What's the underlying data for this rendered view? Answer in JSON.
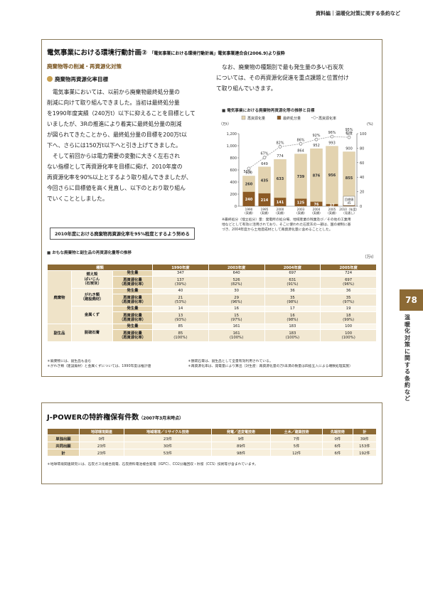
{
  "header": {
    "running_title": "資料編｜温暖化対策に関する条約など"
  },
  "side": {
    "page_number": "78",
    "vertical_label": "温暖化対策に関する条約など"
  },
  "section1": {
    "title": "電気事業における環境行動計画②",
    "title_small": "「電気事業における環境行動計画」電気事業連合会(2006.9)より抜粋",
    "heading": "廃棄物等の削減・再資源化対策",
    "subheading": "廃棄物再資源化率目標",
    "para_left": [
      "電気事業においては、以前から廃棄物最終処分量の",
      "削減に向けて取り組んできました。当初は最終処分量",
      "を1990年度実績（240万t）以下に抑えることを目標として",
      "いましたが、3Rの推進により着実に最終処分量の削減",
      "が図られてきたことから、最終処分量の目標を200万t以",
      "下へ、さらには150万t以下へと引き上げてきました。",
      "そして前回からは電力需要の変動に大きく左右され",
      "ない指標として再資源化率を目標に掲げ、2010年度の",
      "再資源化率を90%以上とするよう取り組んできましたが、",
      "今回さらに目標値を高く見直し、以下のとおり取り組ん",
      "でいくこととしました。"
    ],
    "para_right": [
      "なお、廃棄物の種類別で最も発生量の多い石炭灰",
      "については、その再資源化促進を重点課題と位置付け",
      "て取り組んでいきます。"
    ],
    "target_box": "2010年度における廃棄物再資源化率を95%程度とするよう努める",
    "chart_title": "電気事業における廃棄物再資源化等の推移と目標",
    "chart_note": [
      "※最終処分（埋立処分）量：発電所の処分場、地域産業の残業及び／その他の工業用",
      "地などとして有効に活用されており、そこに使われた石炭灰の一部は、国の規制に基",
      "づき、2004年度から土地造成材として再資源化量に含めることとした。"
    ],
    "table_title": "おもな廃棄物と副生品の再資源化量等の推移",
    "table_unit": "（万t）",
    "table_header": [
      "種類",
      "",
      "",
      "1990年度",
      "2003年度",
      "2004年度",
      "2005年度"
    ],
    "table_groups": [
      {
        "category": "廃棄物",
        "items": [
          {
            "name": "燃え殻\nばいじん\n（石炭灰）",
            "rows": [
              {
                "label": "発生量",
                "values": [
                  "347",
                  "640",
                  "697",
                  "724"
                ]
              },
              {
                "label": "再資源化量\n（再資源化率）",
                "values": [
                  "137\n(39%)",
                  "526\n(82%)",
                  "631\n(91%)",
                  "697\n(96%)"
                ]
              }
            ]
          },
          {
            "name": "がれき類\n（建設廃材）",
            "rows": [
              {
                "label": "発生量",
                "values": [
                  "40",
                  "30",
                  "36",
                  "36"
                ]
              },
              {
                "label": "再資源化量\n（再資源化率）",
                "values": [
                  "21\n(53%)",
                  "29\n(96%)",
                  "35\n(98%)",
                  "35\n(97%)"
                ]
              }
            ]
          },
          {
            "name": "金属くず",
            "rows": [
              {
                "label": "発生量",
                "values": [
                  "14",
                  "16",
                  "17",
                  "19"
                ]
              },
              {
                "label": "再資源化量\n（再資源化率）",
                "values": [
                  "13\n(93%)",
                  "15\n(97%)",
                  "16\n(98%)",
                  "18\n(99%)"
                ]
              }
            ]
          }
        ]
      },
      {
        "category": "副生品",
        "items": [
          {
            "name": "脱硫石膏",
            "rows": [
              {
                "label": "発生量",
                "values": [
                  "85",
                  "161",
                  "183",
                  "100"
                ]
              },
              {
                "label": "再資源化量\n（再資源化率）",
                "values": [
                  "85\n(100%)",
                  "161\n(100%)",
                  "183\n(100%)",
                  "100\n(100%)"
                ]
              }
            ]
          }
        ]
      }
    ],
    "table_notes_left": [
      "＊廃棄物には、副生品も含む",
      "＊がれき類（建設廃材）と金属くずについては、1990年度は推計値"
    ],
    "table_notes_right": [
      "＊脱硫石膏は、副生品として全量有効利用されている。",
      "＊再資源化率は、発電量により算出（対生産：再資源化量の万t未満の数量は四捨五入による端数処理実施）"
    ]
  },
  "section2": {
    "title": "J-POWERの特許権保有件数",
    "title_small": "（2007年3月末時点）",
    "headers": [
      "",
      "地球環境関連",
      "地域環境／リサイクル技術",
      "発電／送変電技術",
      "土木／建築技術",
      "先端技術",
      "計"
    ],
    "rows": [
      [
        "単独出願",
        "0件",
        "23件",
        "9件",
        "7件",
        "0件",
        "39件"
      ],
      [
        "共同出願",
        "23件",
        "30件",
        "89件",
        "5件",
        "6件",
        "153件"
      ],
      [
        "計",
        "23件",
        "53件",
        "98件",
        "12件",
        "6件",
        "192件"
      ]
    ],
    "note": "＊地球環境関連研究には、石炭ガス化複合発電、石炭燃料電池複合発電（IGFC）、CO2分離回収・貯留（CCS）技術等が含まれています。"
  },
  "chart_data": {
    "type": "bar",
    "title": "電気事業における廃棄物再資源化等の推移と目標",
    "categories": [
      "1990\n(実績)",
      "1995\n(実績)",
      "2000\n(実績)",
      "2003\n(実績)",
      "2004\n(実績)",
      "2005\n(実績)",
      "2010（年度）\n（見通し）"
    ],
    "series": [
      {
        "name": "再資源化量",
        "values": [
          260,
          435,
          633,
          739,
          876,
          956,
          855
        ],
        "color": "#e3d3b0"
      },
      {
        "name": "最終処分量",
        "values": [
          240,
          214,
          141,
          125,
          76,
          37,
          45
        ],
        "color": "#8c5a25"
      }
    ],
    "totals": [
      500,
      649,
      774,
      864,
      952,
      993,
      900
    ],
    "rate": {
      "name": "再資源化率",
      "values": [
        52,
        67,
        82,
        86,
        92,
        96,
        95
      ],
      "labels": [
        "52%",
        "67%",
        "82%",
        "86%",
        "92%",
        "96%",
        "95%\n程度"
      ]
    },
    "y_left": {
      "unit": "（万t）",
      "ticks": [
        "0",
        "200",
        "400",
        "600",
        "800",
        "1,000",
        "1,200"
      ],
      "max": 1200
    },
    "y_right": {
      "unit": "(%)",
      "ticks": [
        "0",
        "20",
        "40",
        "60",
        "80",
        "100"
      ],
      "max": 100
    },
    "target_label": "目標値\n45"
  }
}
